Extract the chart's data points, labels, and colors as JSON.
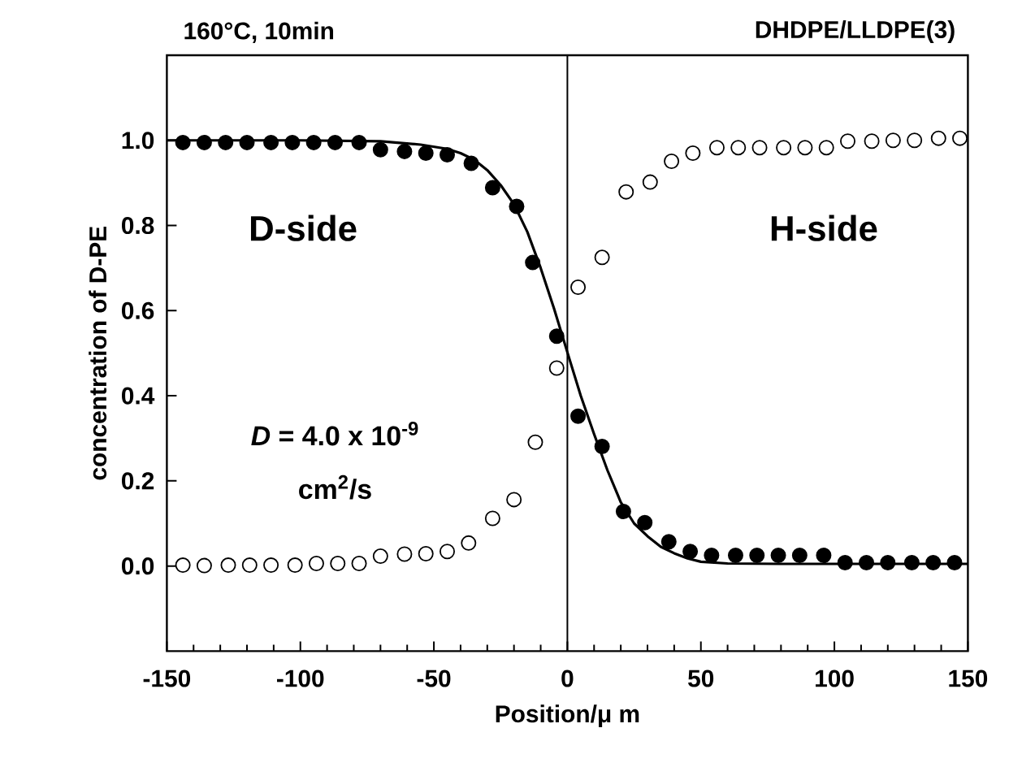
{
  "chart_data": {
    "type": "scatter",
    "title": "160°C, 10min",
    "subtitle": "DHDPE/LLDPE(3)",
    "xlabel": "Position/μ m",
    "ylabel": "concentration of D-PE",
    "xlim": [
      -150,
      150
    ],
    "ylim": [
      -0.2,
      1.2
    ],
    "xticks": [
      -150,
      {
        "value": -140,
        "label": null
      },
      {
        "value": -130,
        "label": null
      },
      {
        "value": -120,
        "label": null
      },
      {
        "value": -110,
        "label": null
      },
      -100,
      {
        "value": -90,
        "label": null
      },
      {
        "value": -80,
        "label": null
      },
      {
        "value": -70,
        "label": null
      },
      {
        "value": -60,
        "label": null
      },
      -50,
      {
        "value": -40,
        "label": null
      },
      {
        "value": -30,
        "label": null
      },
      {
        "value": -20,
        "label": null
      },
      {
        "value": -10,
        "label": null
      },
      0,
      {
        "value": 10,
        "label": null
      },
      {
        "value": 20,
        "label": null
      },
      {
        "value": 30,
        "label": null
      },
      {
        "value": 40,
        "label": null
      },
      50,
      {
        "value": 60,
        "label": null
      },
      {
        "value": 70,
        "label": null
      },
      {
        "value": 80,
        "label": null
      },
      {
        "value": 90,
        "label": null
      },
      100,
      {
        "value": 110,
        "label": null
      },
      {
        "value": 120,
        "label": null
      },
      {
        "value": 130,
        "label": null
      },
      {
        "value": 140,
        "label": null
      },
      150
    ],
    "yticks": [
      {
        "value": 0,
        "label": "0.0"
      },
      0.2,
      0.4,
      0.6,
      0.8,
      {
        "value": 1,
        "label": "1.0"
      }
    ],
    "marker": "circle",
    "ref_lines": [
      {
        "axis": "x",
        "value": 0,
        "color": "#000000"
      }
    ],
    "annotations": [
      "D-side",
      "H-side",
      "*D* = 4.0 x 10$^{-9}$",
      "cm$^{2}$/s"
    ],
    "series": [
      {
        "color": "#000000",
        "x": [
          -144,
          -136,
          -128,
          -120,
          -111,
          -103,
          -95,
          -87,
          -78,
          -70,
          -61,
          -53,
          -45,
          -36,
          -28,
          -19,
          -13,
          -4,
          4,
          13,
          21,
          29,
          38,
          46,
          54,
          63,
          71,
          79,
          87,
          96,
          104,
          112,
          120,
          129,
          137,
          145
        ],
        "values": [
          0.995,
          0.995,
          0.995,
          0.995,
          0.995,
          0.995,
          0.995,
          0.995,
          0.995,
          0.978,
          0.974,
          0.97,
          0.966,
          0.946,
          0.889,
          0.845,
          0.713,
          0.54,
          0.352,
          0.281,
          0.128,
          0.102,
          0.057,
          0.034,
          0.025,
          0.025,
          0.025,
          0.025,
          0.025,
          0.025,
          0.008,
          0.008,
          0.008,
          0.008,
          0.008,
          0.008
        ]
      },
      {
        "color": "#ffffff",
        "x": [
          -144,
          -136,
          -127,
          -119,
          -111,
          -102,
          -94,
          -86,
          -78,
          -70,
          -61,
          -53,
          -45,
          -37,
          -28,
          -20,
          -12,
          -4,
          4,
          13,
          22,
          31,
          39,
          47,
          56,
          64,
          72,
          81,
          89,
          97,
          105,
          114,
          122,
          130,
          139,
          147
        ],
        "values": [
          0.002,
          0.001,
          0.002,
          0.002,
          0.002,
          0.002,
          0.006,
          0.006,
          0.006,
          0.023,
          0.028,
          0.029,
          0.034,
          0.054,
          0.112,
          0.156,
          0.291,
          0.465,
          0.655,
          0.725,
          0.879,
          0.902,
          0.951,
          0.97,
          0.983,
          0.983,
          0.983,
          0.983,
          0.983,
          0.983,
          0.998,
          0.998,
          1.0,
          1.0,
          1.005,
          1.005
        ]
      },
      {
        "type": "line",
        "marker": "none",
        "line_style": "solid",
        "color": "#000000",
        "x": [
          -150,
          -100,
          -70,
          -55,
          -45,
          -40,
          -35,
          -30,
          -25,
          -20,
          -15,
          -10,
          -5,
          0,
          5,
          10,
          15,
          20,
          25,
          30,
          35,
          40,
          45,
          50,
          60,
          80,
          150
        ],
        "values": [
          1.0,
          1.0,
          0.998,
          0.99,
          0.98,
          0.97,
          0.955,
          0.93,
          0.895,
          0.85,
          0.785,
          0.7,
          0.605,
          0.502,
          0.4,
          0.31,
          0.225,
          0.15,
          0.1,
          0.07,
          0.045,
          0.03,
          0.018,
          0.01,
          0.006,
          0.005,
          0.005
        ]
      }
    ]
  }
}
